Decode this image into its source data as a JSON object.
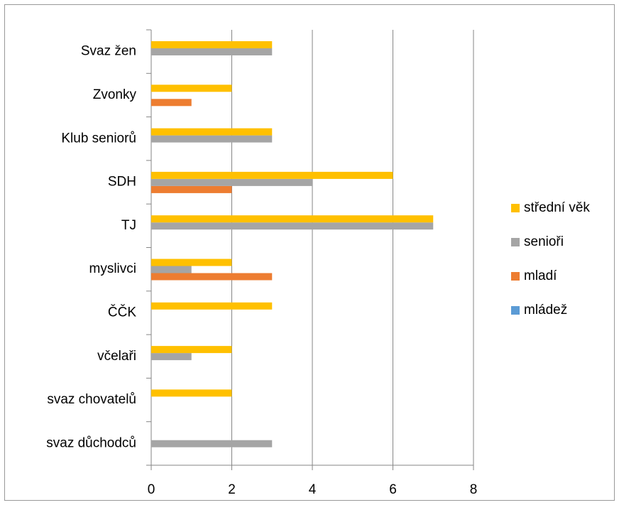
{
  "chart_data": {
    "type": "bar",
    "orientation": "horizontal",
    "categories": [
      "Svaz žen",
      "Zvonky",
      "Klub seniorů",
      "SDH",
      "TJ",
      "myslivci",
      "ČČK",
      "včelaři",
      "svaz chovatelů",
      "svaz důchodců"
    ],
    "series": [
      {
        "name": "mládež",
        "color": "#5b9bd5",
        "values": [
          0,
          0,
          0,
          0,
          0,
          0,
          0,
          0,
          0,
          0
        ]
      },
      {
        "name": "mladí",
        "color": "#ed7d31",
        "values": [
          0,
          1,
          0,
          2,
          0,
          3,
          0,
          0,
          0,
          0
        ]
      },
      {
        "name": "senioři",
        "color": "#a5a5a5",
        "values": [
          3,
          0,
          3,
          4,
          7,
          1,
          0,
          1,
          0,
          3
        ]
      },
      {
        "name": "střední věk",
        "color": "#ffc000",
        "values": [
          3,
          2,
          3,
          6,
          7,
          2,
          3,
          2,
          2,
          0
        ]
      }
    ],
    "xlim": [
      0,
      8
    ],
    "xticks": [
      0,
      2,
      4,
      6,
      8
    ],
    "grid": true,
    "legend": "right"
  }
}
